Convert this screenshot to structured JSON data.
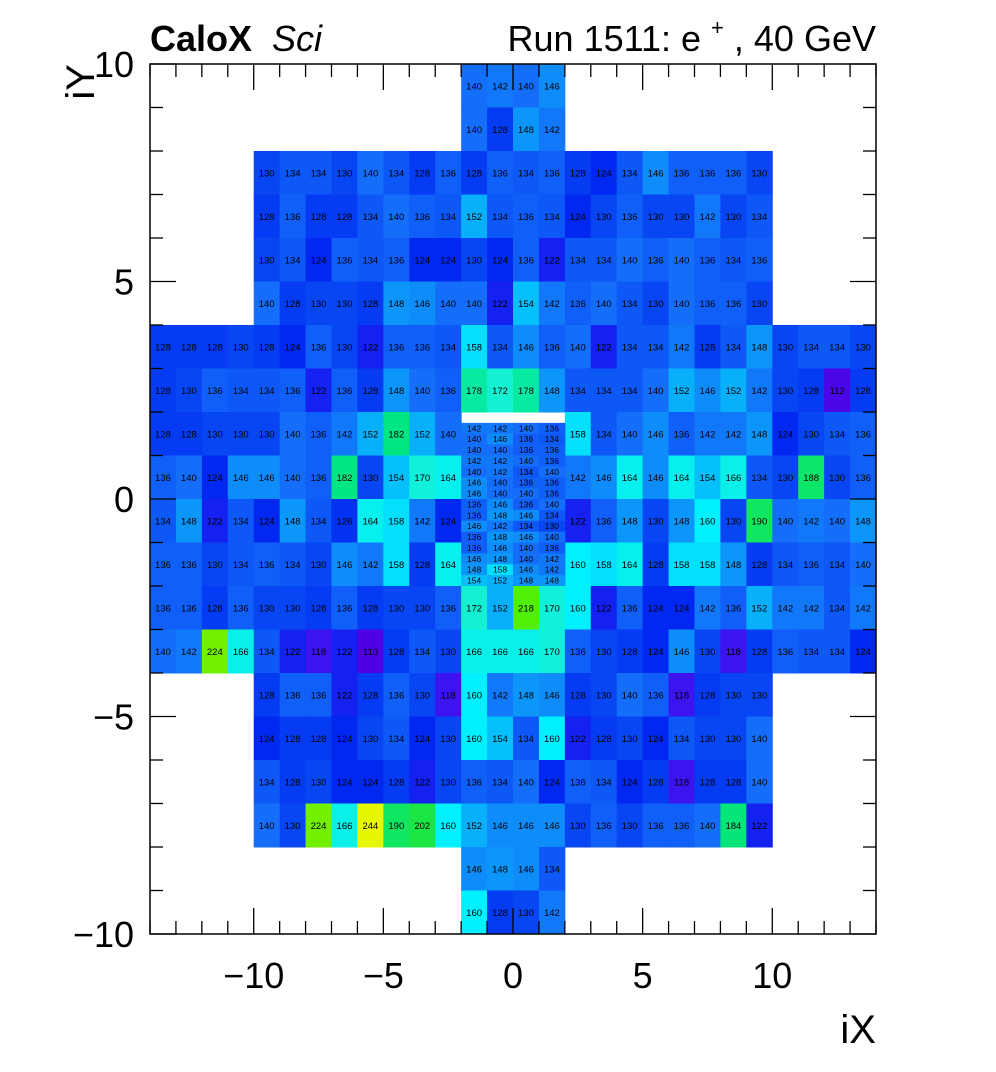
{
  "header": {
    "experiment": "CaloX",
    "experiment_sub": "Sci",
    "run_text": "Run 1511: e",
    "run_sup": "+",
    "run_tail": ", 40 GeV"
  },
  "chart_data": {
    "type": "heatmap",
    "xlabel": "iX",
    "ylabel": "iY",
    "xlim": [
      -14,
      14
    ],
    "ylim": [
      -10,
      10
    ],
    "xticks": [
      -10,
      -5,
      0,
      5,
      10
    ],
    "yticks": [
      -10,
      -5,
      0,
      5,
      10
    ],
    "xtick_labels": [
      "−10",
      "−5",
      "0",
      "5",
      "10"
    ],
    "ytick_labels": [
      "−10",
      "−5",
      "0",
      "5",
      "10"
    ],
    "grid": false,
    "colormap": "ROOT kBird (blue → cyan → green → yellow)",
    "z_range": [
      110,
      250
    ],
    "regions": [
      {
        "name": "top-arm",
        "x": [
          -2,
          -1,
          0,
          1
        ],
        "y": [
          9,
          8
        ],
        "values": [
          [
            140,
            142,
            140,
            146
          ],
          [
            140,
            128,
            148,
            142
          ]
        ]
      },
      {
        "name": "upper-block",
        "x": [
          -10,
          -9,
          -8,
          -7,
          -6,
          -5,
          -4,
          -3,
          -2,
          -1,
          0,
          1,
          2,
          3,
          4,
          5,
          6,
          7,
          8,
          9
        ],
        "y": [
          7,
          6,
          5,
          4
        ],
        "values": [
          [
            130,
            134,
            134,
            130,
            140,
            134,
            128,
            136,
            128,
            136,
            134,
            136,
            128,
            124,
            134,
            146,
            136,
            136,
            136,
            130
          ],
          [
            128,
            136,
            128,
            128,
            134,
            140,
            136,
            134,
            152,
            134,
            136,
            134,
            124,
            130,
            136,
            130,
            130,
            142,
            130,
            134
          ],
          [
            130,
            134,
            124,
            136,
            134,
            136,
            124,
            124,
            130,
            124,
            136,
            122,
            134,
            134,
            140,
            136,
            140,
            136,
            134,
            136
          ],
          [
            140,
            128,
            130,
            130,
            128,
            148,
            146,
            140,
            140,
            122,
            154,
            142,
            136,
            140,
            134,
            130,
            140,
            136,
            136,
            130
          ]
        ]
      },
      {
        "name": "wide-band-upper",
        "x": [
          -14,
          -13,
          -12,
          -11,
          -10,
          -9,
          -8,
          -7,
          -6,
          -5,
          -4,
          -3,
          -2,
          -1,
          0,
          1,
          2,
          3,
          4,
          5,
          6,
          7,
          8,
          9,
          10,
          11,
          12,
          13
        ],
        "y": [
          3,
          2,
          1
        ],
        "values": [
          [
            128,
            128,
            128,
            130,
            128,
            124,
            136,
            130,
            122,
            136,
            136,
            134,
            158,
            134,
            146,
            136,
            140,
            122,
            134,
            134,
            142,
            128,
            134,
            148,
            130,
            134,
            134,
            130
          ],
          [
            128,
            130,
            136,
            134,
            134,
            136,
            122,
            136,
            128,
            148,
            140,
            136,
            178,
            172,
            178,
            148,
            134,
            134,
            134,
            140,
            152,
            146,
            152,
            142,
            130,
            128,
            112,
            128
          ],
          [
            128,
            128,
            130,
            130,
            130,
            140,
            136,
            142,
            152,
            182,
            152,
            140,
            null,
            null,
            null,
            null,
            158,
            134,
            140,
            146,
            136,
            142,
            142,
            148,
            124,
            130,
            134,
            136
          ]
        ]
      },
      {
        "name": "wide-band-middle",
        "x": [
          -14,
          -13,
          -12,
          -11,
          -10,
          -9,
          -8,
          -7,
          -6,
          -5,
          -4,
          -3,
          2,
          3,
          4,
          5,
          6,
          7,
          8,
          9,
          10,
          11,
          12,
          13
        ],
        "y": [
          0,
          -1,
          -2
        ],
        "values": [
          [
            136,
            140,
            124,
            146,
            146,
            140,
            136,
            182,
            130,
            154,
            170,
            164,
            142,
            146,
            164,
            146,
            164,
            154,
            166,
            134,
            130,
            188,
            130,
            136
          ],
          [
            134,
            148,
            122,
            134,
            124,
            148,
            134,
            126,
            164,
            158,
            142,
            124,
            122,
            136,
            148,
            130,
            148,
            160,
            130,
            190,
            140,
            142,
            140,
            148
          ],
          [
            136,
            136,
            130,
            134,
            136,
            134,
            130,
            146,
            142,
            158,
            128,
            164,
            160,
            158,
            164,
            128,
            158,
            158,
            148,
            128,
            134,
            136,
            134,
            140
          ]
        ]
      },
      {
        "name": "fine-center",
        "x": [
          -2,
          -1,
          0,
          1
        ],
        "y_rows": [
          1.75,
          1.5,
          1.25,
          1.0,
          0.75,
          0.5,
          0.25,
          0.0,
          -0.25,
          -0.5,
          -0.75,
          -1.0,
          -1.25,
          -1.5,
          -1.75,
          -2.0
        ],
        "values": [
          [
            142,
            142,
            140,
            136
          ],
          [
            140,
            146,
            136,
            134
          ],
          [
            140,
            140,
            136,
            136
          ],
          [
            142,
            142,
            140,
            136
          ],
          [
            140,
            142,
            134,
            140
          ],
          [
            146,
            140,
            136,
            136
          ],
          [
            146,
            140,
            140,
            136
          ],
          [
            136,
            146,
            136,
            140
          ],
          [
            136,
            148,
            146,
            134
          ],
          [
            146,
            142,
            134,
            130
          ],
          [
            136,
            148,
            146,
            140
          ],
          [
            136,
            146,
            140,
            136
          ],
          [
            146,
            148,
            140,
            142
          ],
          [
            148,
            158,
            146,
            142
          ],
          [
            154,
            152,
            148,
            148
          ],
          [
            154,
            154,
            146,
            142
          ]
        ]
      },
      {
        "name": "wide-band-lower",
        "x": [
          -14,
          -13,
          -12,
          -11,
          -10,
          -9,
          -8,
          -7,
          -6,
          -5,
          -4,
          -3,
          -2,
          -1,
          0,
          1,
          2,
          3,
          4,
          5,
          6,
          7,
          8,
          9,
          10,
          11,
          12,
          13
        ],
        "y": [
          -3,
          -4
        ],
        "values": [
          [
            136,
            136,
            128,
            136,
            130,
            130,
            128,
            136,
            128,
            130,
            130,
            136,
            172,
            152,
            218,
            170,
            160,
            122,
            136,
            124,
            124,
            142,
            136,
            152,
            142,
            142,
            134,
            142
          ],
          [
            140,
            142,
            224,
            166,
            134,
            122,
            118,
            122,
            110,
            128,
            134,
            130,
            166,
            166,
            166,
            170,
            136,
            130,
            128,
            124,
            146,
            130,
            118,
            128,
            136,
            134,
            134,
            124
          ]
        ]
      },
      {
        "name": "lower-block",
        "x": [
          -10,
          -9,
          -8,
          -7,
          -6,
          -5,
          -4,
          -3,
          -2,
          -1,
          0,
          1,
          2,
          3,
          4,
          5,
          6,
          7,
          8,
          9
        ],
        "y": [
          -5,
          -6,
          -7,
          -8
        ],
        "values": [
          [
            128,
            136,
            136,
            122,
            128,
            136,
            130,
            118,
            160,
            142,
            148,
            146,
            128,
            130,
            140,
            136,
            118,
            128,
            130,
            130
          ],
          [
            124,
            128,
            128,
            124,
            130,
            134,
            124,
            130,
            160,
            154,
            134,
            160,
            122,
            128,
            130,
            124,
            134,
            130,
            130,
            140
          ],
          [
            134,
            128,
            130,
            124,
            124,
            128,
            122,
            130,
            136,
            134,
            140,
            124,
            136,
            134,
            124,
            128,
            118,
            128,
            128,
            140
          ],
          [
            140,
            130,
            224,
            166,
            244,
            190,
            202,
            160,
            152,
            146,
            146,
            146,
            130,
            136,
            130,
            136,
            136,
            140,
            184,
            122
          ]
        ]
      },
      {
        "name": "bottom-arm",
        "x": [
          -2,
          -1,
          0,
          1
        ],
        "y": [
          -9,
          -10
        ],
        "values": [
          [
            146,
            148,
            146,
            134
          ],
          [
            160,
            128,
            130,
            142
          ]
        ]
      }
    ]
  }
}
